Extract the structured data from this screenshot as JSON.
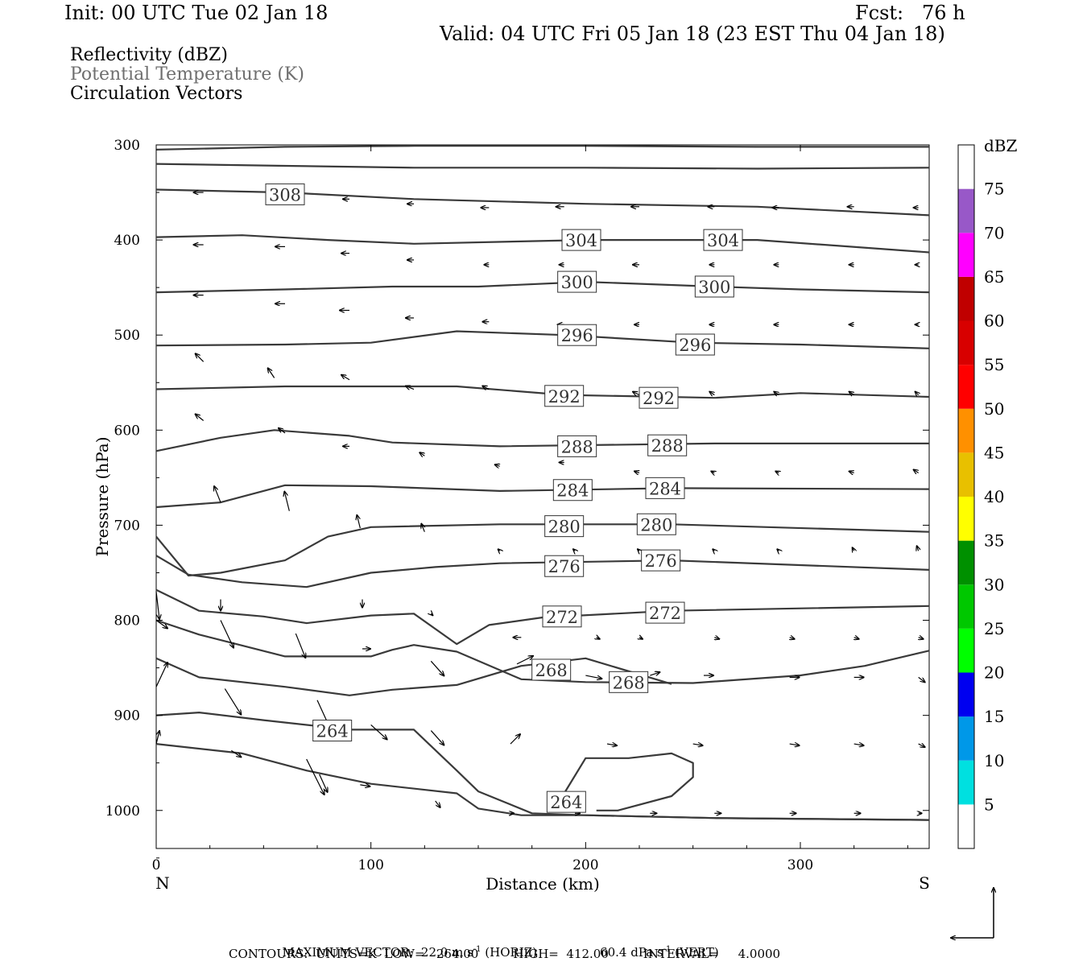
{
  "header": {
    "init": "Init: 00 UTC Tue 02 Jan 18",
    "fcst": "Fcst:   76 h",
    "valid": "Valid: 04 UTC Fri 05 Jan 18 (23 EST Thu 04 Jan 18)"
  },
  "legend_lines": {
    "reflectivity": "Reflectivity (dBZ)",
    "theta": "Potential Temperature (K)",
    "vectors": "Circulation Vectors"
  },
  "footer": {
    "max_vector_prefix": "MAXIMUM VECTOR:  22.0 m s",
    "horiz_suffix": " (HORIZ)",
    "vert_prefix": "60.4 dPa s",
    "vert_suffix": " (VERT)",
    "exp": "-1",
    "contours": "CONTOURS:  UNITS=K  LOW=   264.00         HIGH=  412.00         INTERVAL=     4.0000"
  },
  "colors": {
    "contour": "#3a3a3a",
    "vector": "#000000",
    "axis": "#000000"
  },
  "chart_data": {
    "type": "contour",
    "xlabel": "Distance (km)",
    "ylabel": "Pressure (hPa)",
    "xlim": [
      0,
      360
    ],
    "ylim": [
      1040,
      300
    ],
    "x_ticks": [
      0,
      100,
      200,
      300
    ],
    "y_ticks": [
      300,
      400,
      500,
      600,
      700,
      800,
      900,
      1000
    ],
    "x_end_labels": {
      "left": "N",
      "right": "S"
    },
    "colorbar": {
      "unit": "dBZ",
      "levels": [
        5,
        10,
        15,
        20,
        25,
        30,
        35,
        40,
        45,
        50,
        55,
        60,
        65,
        70,
        75
      ],
      "colors": [
        "#ffffff",
        "#00e0e0",
        "#0098e8",
        "#0000f0",
        "#00ff00",
        "#00c800",
        "#009000",
        "#ffff00",
        "#e8c000",
        "#ff9000",
        "#ff0000",
        "#d80000",
        "#c00000",
        "#ff00ff",
        "#9858c8",
        "#ffffff"
      ]
    },
    "theta_labels": [
      {
        "value": "308",
        "x": 60,
        "p": 352
      },
      {
        "value": "304",
        "x": 198,
        "p": 400
      },
      {
        "value": "304",
        "x": 264,
        "p": 400
      },
      {
        "value": "300",
        "x": 196,
        "p": 444
      },
      {
        "value": "300",
        "x": 260,
        "p": 449
      },
      {
        "value": "296",
        "x": 196,
        "p": 500
      },
      {
        "value": "296",
        "x": 251,
        "p": 510
      },
      {
        "value": "292",
        "x": 190,
        "p": 564
      },
      {
        "value": "292",
        "x": 234,
        "p": 566
      },
      {
        "value": "288",
        "x": 196,
        "p": 617
      },
      {
        "value": "288",
        "x": 238,
        "p": 616
      },
      {
        "value": "284",
        "x": 194,
        "p": 663
      },
      {
        "value": "284",
        "x": 237,
        "p": 661
      },
      {
        "value": "280",
        "x": 190,
        "p": 701
      },
      {
        "value": "280",
        "x": 233,
        "p": 699
      },
      {
        "value": "276",
        "x": 190,
        "p": 743
      },
      {
        "value": "276",
        "x": 235,
        "p": 737
      },
      {
        "value": "272",
        "x": 189,
        "p": 796
      },
      {
        "value": "272",
        "x": 237,
        "p": 792
      },
      {
        "value": "268",
        "x": 184,
        "p": 852
      },
      {
        "value": "268",
        "x": 220,
        "p": 865
      },
      {
        "value": "264",
        "x": 82,
        "p": 916
      },
      {
        "value": "264",
        "x": 191,
        "p": 991
      }
    ],
    "theta_lines": [
      [
        [
          0,
          305
        ],
        [
          60,
          302
        ],
        [
          120,
          301
        ],
        [
          200,
          301
        ],
        [
          280,
          302
        ],
        [
          360,
          302
        ]
      ],
      [
        [
          0,
          320
        ],
        [
          60,
          322
        ],
        [
          120,
          324
        ],
        [
          200,
          324
        ],
        [
          280,
          325
        ],
        [
          360,
          324
        ]
      ],
      [
        [
          0,
          347
        ],
        [
          60,
          350
        ],
        [
          120,
          357
        ],
        [
          200,
          362
        ],
        [
          280,
          365
        ],
        [
          360,
          374
        ]
      ],
      [
        [
          0,
          397
        ],
        [
          40,
          395
        ],
        [
          80,
          400
        ],
        [
          120,
          404
        ],
        [
          200,
          400
        ],
        [
          280,
          400
        ],
        [
          360,
          413
        ]
      ],
      [
        [
          0,
          455
        ],
        [
          60,
          452
        ],
        [
          110,
          449
        ],
        [
          150,
          449
        ],
        [
          200,
          444
        ],
        [
          260,
          449
        ],
        [
          300,
          452
        ],
        [
          360,
          455
        ]
      ],
      [
        [
          0,
          511
        ],
        [
          60,
          510
        ],
        [
          100,
          508
        ],
        [
          140,
          496
        ],
        [
          190,
          500
        ],
        [
          250,
          508
        ],
        [
          300,
          510
        ],
        [
          360,
          514
        ]
      ],
      [
        [
          0,
          557
        ],
        [
          60,
          554
        ],
        [
          140,
          554
        ],
        [
          190,
          563
        ],
        [
          260,
          566
        ],
        [
          300,
          561
        ],
        [
          360,
          565
        ]
      ],
      [
        [
          0,
          622
        ],
        [
          30,
          608
        ],
        [
          55,
          600
        ],
        [
          90,
          606
        ],
        [
          110,
          613
        ],
        [
          160,
          617
        ],
        [
          260,
          614
        ],
        [
          360,
          614
        ]
      ],
      [
        [
          0,
          681
        ],
        [
          30,
          676
        ],
        [
          60,
          658
        ],
        [
          100,
          659
        ],
        [
          160,
          664
        ],
        [
          240,
          661
        ],
        [
          360,
          662
        ]
      ],
      [
        [
          0,
          712
        ],
        [
          15,
          753
        ],
        [
          30,
          750
        ],
        [
          60,
          737
        ],
        [
          80,
          712
        ],
        [
          100,
          702
        ],
        [
          160,
          699
        ],
        [
          240,
          699
        ],
        [
          360,
          707
        ]
      ],
      [
        [
          0,
          732
        ],
        [
          15,
          752
        ],
        [
          40,
          760
        ],
        [
          70,
          765
        ],
        [
          100,
          750
        ],
        [
          130,
          744
        ],
        [
          160,
          740
        ],
        [
          240,
          737
        ],
        [
          360,
          747
        ]
      ],
      [
        [
          0,
          768
        ],
        [
          20,
          790
        ],
        [
          50,
          796
        ],
        [
          70,
          803
        ],
        [
          100,
          795
        ],
        [
          120,
          793
        ],
        [
          140,
          825
        ],
        [
          155,
          805
        ],
        [
          180,
          797
        ],
        [
          240,
          790
        ],
        [
          360,
          785
        ]
      ],
      [
        [
          0,
          800
        ],
        [
          20,
          815
        ],
        [
          60,
          838
        ],
        [
          100,
          838
        ],
        [
          110,
          831
        ],
        [
          120,
          826
        ],
        [
          140,
          833
        ],
        [
          170,
          862
        ],
        [
          200,
          865
        ],
        [
          250,
          866
        ],
        [
          300,
          858
        ],
        [
          330,
          848
        ],
        [
          360,
          832
        ]
      ],
      [
        [
          0,
          840
        ],
        [
          20,
          860
        ],
        [
          60,
          870
        ],
        [
          90,
          879
        ],
        [
          110,
          873
        ],
        [
          140,
          868
        ],
        [
          170,
          848
        ],
        [
          200,
          840
        ],
        [
          240,
          867
        ]
      ],
      [
        [
          0,
          900
        ],
        [
          20,
          897
        ],
        [
          50,
          905
        ],
        [
          90,
          915
        ],
        [
          120,
          915
        ],
        [
          140,
          958
        ],
        [
          150,
          980
        ],
        [
          175,
          1003
        ],
        [
          200,
          1005
        ],
        [
          260,
          1008
        ],
        [
          360,
          1010
        ]
      ],
      [
        [
          0,
          930
        ],
        [
          40,
          940
        ],
        [
          70,
          958
        ],
        [
          100,
          972
        ],
        [
          140,
          982
        ],
        [
          150,
          998
        ],
        [
          170,
          1005
        ],
        [
          200,
          1005
        ],
        [
          260,
          1008
        ],
        [
          360,
          1010
        ]
      ],
      [
        [
          190,
          982
        ],
        [
          200,
          945
        ],
        [
          220,
          945
        ],
        [
          240,
          940
        ],
        [
          250,
          950
        ],
        [
          250,
          965
        ],
        [
          240,
          985
        ],
        [
          215,
          1000
        ],
        [
          205,
          1000
        ]
      ]
    ],
    "vectors": [
      [
        22,
        350,
        -12,
        0
      ],
      [
        60,
        351,
        -10,
        0
      ],
      [
        90,
        357,
        -8,
        0
      ],
      [
        120,
        362,
        -8,
        0
      ],
      [
        155,
        366,
        -10,
        0
      ],
      [
        190,
        365,
        -10,
        0
      ],
      [
        225,
        365,
        -10,
        0
      ],
      [
        260,
        365,
        -8,
        0
      ],
      [
        290,
        366,
        -8,
        0
      ],
      [
        325,
        365,
        -8,
        0
      ],
      [
        355,
        366,
        -6,
        0
      ],
      [
        22,
        405,
        -12,
        0
      ],
      [
        60,
        407,
        -12,
        0
      ],
      [
        90,
        414,
        -10,
        0
      ],
      [
        120,
        421,
        -8,
        0
      ],
      [
        155,
        426,
        -6,
        0
      ],
      [
        190,
        426,
        -6,
        0
      ],
      [
        225,
        426,
        -8,
        0
      ],
      [
        260,
        426,
        -6,
        0
      ],
      [
        290,
        426,
        -6,
        0
      ],
      [
        325,
        426,
        -6,
        0
      ],
      [
        355,
        426,
        -4,
        0
      ],
      [
        22,
        458,
        -12,
        0
      ],
      [
        60,
        467,
        -12,
        0
      ],
      [
        90,
        474,
        -12,
        0
      ],
      [
        120,
        482,
        -10,
        0
      ],
      [
        155,
        486,
        -8,
        0
      ],
      [
        190,
        489,
        -8,
        0
      ],
      [
        225,
        489,
        -6,
        0
      ],
      [
        260,
        489,
        -6,
        0
      ],
      [
        290,
        489,
        -6,
        0
      ],
      [
        325,
        489,
        -6,
        0
      ],
      [
        355,
        489,
        -4,
        0
      ],
      [
        22,
        528,
        -10,
        -10
      ],
      [
        55,
        545,
        -8,
        -12
      ],
      [
        90,
        547,
        -10,
        -6
      ],
      [
        120,
        557,
        -10,
        -4
      ],
      [
        155,
        557,
        -8,
        -4
      ],
      [
        225,
        563,
        -8,
        -4
      ],
      [
        260,
        563,
        -6,
        -4
      ],
      [
        290,
        563,
        -6,
        -4
      ],
      [
        325,
        563,
        -6,
        -4
      ],
      [
        355,
        563,
        -4,
        -4
      ],
      [
        22,
        590,
        -10,
        -8
      ],
      [
        60,
        603,
        -8,
        -6
      ],
      [
        90,
        617,
        -8,
        0
      ],
      [
        125,
        627,
        -6,
        -4
      ],
      [
        160,
        638,
        -6,
        -2
      ],
      [
        190,
        634,
        -6,
        0
      ],
      [
        225,
        645,
        -6,
        -2
      ],
      [
        260,
        645,
        -4,
        -2
      ],
      [
        290,
        645,
        -4,
        -2
      ],
      [
        325,
        645,
        -6,
        -2
      ],
      [
        355,
        645,
        -6,
        -4
      ],
      [
        30,
        676,
        -8,
        -20
      ],
      [
        62,
        685,
        -6,
        -24
      ],
      [
        95,
        703,
        -4,
        -16
      ],
      [
        125,
        707,
        -4,
        -10
      ],
      [
        160,
        727,
        -2,
        -2
      ],
      [
        195,
        727,
        -2,
        -2
      ],
      [
        225,
        727,
        -2,
        -2
      ],
      [
        260,
        727,
        -2,
        -2
      ],
      [
        290,
        727,
        -2,
        -2
      ],
      [
        325,
        727,
        -2,
        -4
      ],
      [
        355,
        727,
        -2,
        -6
      ],
      [
        0,
        770,
        4,
        34
      ],
      [
        30,
        778,
        0,
        14
      ],
      [
        96,
        778,
        0,
        10
      ],
      [
        128,
        793,
        2,
        2
      ],
      [
        170,
        818,
        -10,
        0
      ],
      [
        205,
        818,
        4,
        2
      ],
      [
        225,
        818,
        4,
        2
      ],
      [
        260,
        818,
        6,
        2
      ],
      [
        295,
        818,
        6,
        2
      ],
      [
        325,
        818,
        6,
        2
      ],
      [
        355,
        818,
        6,
        2
      ],
      [
        0,
        800,
        14,
        10
      ],
      [
        30,
        800,
        16,
        34
      ],
      [
        65,
        814,
        12,
        30
      ],
      [
        96,
        830,
        10,
        0
      ],
      [
        128,
        843,
        16,
        18
      ],
      [
        168,
        846,
        20,
        -10
      ],
      [
        200,
        858,
        20,
        4
      ],
      [
        230,
        858,
        12,
        -4
      ],
      [
        255,
        858,
        12,
        0
      ],
      [
        295,
        860,
        12,
        0
      ],
      [
        325,
        860,
        12,
        0
      ],
      [
        355,
        860,
        8,
        6
      ],
      [
        0,
        870,
        14,
        -30
      ],
      [
        32,
        872,
        20,
        32
      ],
      [
        75,
        884,
        16,
        35
      ],
      [
        100,
        910,
        20,
        18
      ],
      [
        128,
        916,
        16,
        18
      ],
      [
        165,
        930,
        12,
        -12
      ],
      [
        210,
        930,
        12,
        2
      ],
      [
        250,
        930,
        12,
        2
      ],
      [
        295,
        930,
        12,
        2
      ],
      [
        325,
        930,
        12,
        2
      ],
      [
        355,
        930,
        8,
        4
      ],
      [
        70,
        946,
        22,
        44
      ],
      [
        76,
        962,
        10,
        22
      ],
      [
        95,
        973,
        12,
        2
      ],
      [
        130,
        990,
        6,
        8
      ],
      [
        165,
        1003,
        4,
        0
      ],
      [
        195,
        1003,
        6,
        0
      ],
      [
        230,
        1003,
        8,
        0
      ],
      [
        260,
        1003,
        8,
        0
      ],
      [
        295,
        1003,
        8,
        0
      ],
      [
        325,
        1003,
        8,
        0
      ],
      [
        355,
        1003,
        4,
        0
      ],
      [
        0,
        930,
        4,
        -16
      ],
      [
        35,
        937,
        12,
        8
      ]
    ]
  }
}
